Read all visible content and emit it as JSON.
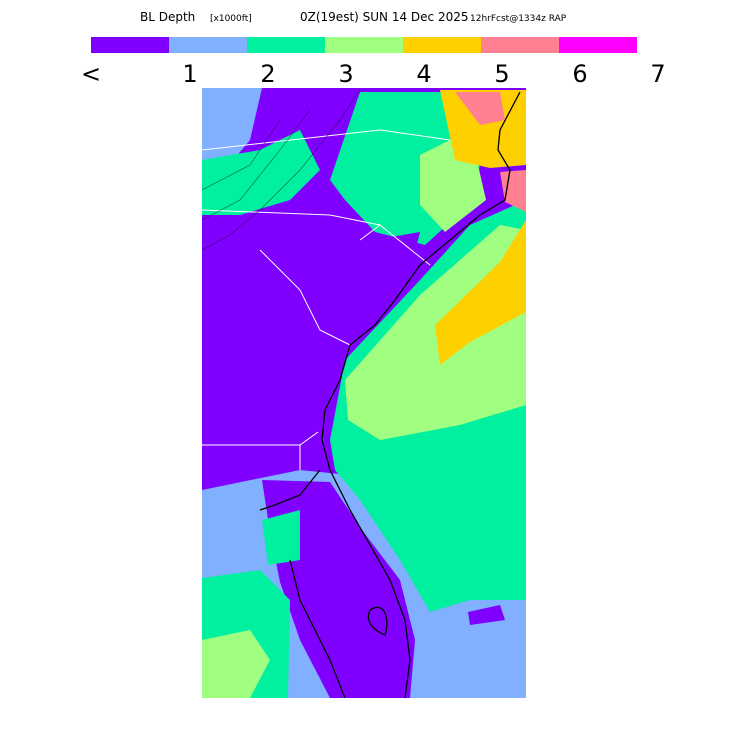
{
  "title": {
    "field": "BL Depth",
    "units": "[x1000ft]",
    "time": "0Z(19est) SUN 14 Dec 2025",
    "forecast": "12hrFcst@1334z RAP"
  },
  "legend": {
    "colors": [
      "#8000ff",
      "#80b0ff",
      "#00f0a0",
      "#a0ff80",
      "#ffd000",
      "#ff8090",
      "#ff00ff"
    ],
    "labels": [
      "<",
      "1",
      "2",
      "3",
      "4",
      "5",
      "6",
      "7"
    ]
  }
}
